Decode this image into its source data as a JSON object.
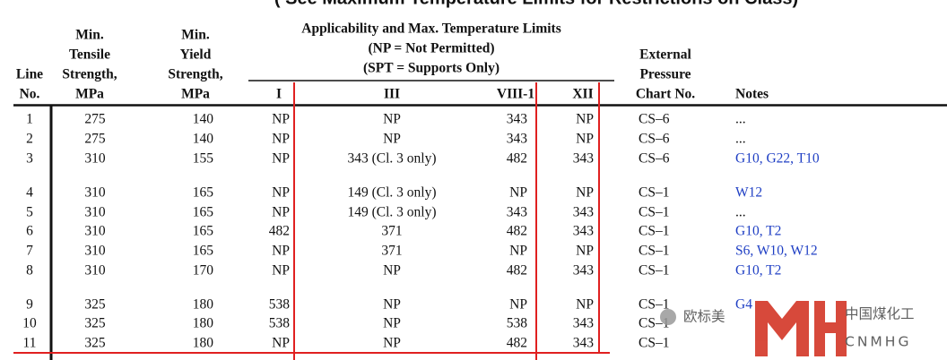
{
  "title": "( See Maximum Temperature Limits for Restrictions on Class)",
  "header": {
    "line": [
      "Line",
      "No."
    ],
    "tensile": [
      "Min.",
      "Tensile",
      "Strength,",
      "MPa"
    ],
    "yield": [
      "Min.",
      "Yield",
      "Strength,",
      "MPa"
    ],
    "applicability": [
      "Applicability and Max. Temperature Limits",
      "(NP = Not Permitted)",
      "(SPT = Supports Only)"
    ],
    "sub": [
      "I",
      "III",
      "VIII-1",
      "XII"
    ],
    "chart": [
      "External",
      "Pressure",
      "Chart No."
    ],
    "notes": "Notes"
  },
  "rows": [
    {
      "line": "1",
      "tensile": "275",
      "yield": "140",
      "I": "NP",
      "III": "NP",
      "VIII": "343",
      "XII": "NP",
      "chart": "CS–6",
      "notes": "..."
    },
    {
      "line": "2",
      "tensile": "275",
      "yield": "140",
      "I": "NP",
      "III": "NP",
      "VIII": "343",
      "XII": "NP",
      "chart": "CS–6",
      "notes": "..."
    },
    {
      "line": "3",
      "tensile": "310",
      "yield": "155",
      "I": "NP",
      "III": "343 (Cl. 3 only)",
      "VIII": "482",
      "XII": "343",
      "chart": "CS–6",
      "notes": "G10,  G22,  T10"
    },
    {
      "line": "4",
      "tensile": "310",
      "yield": "165",
      "I": "NP",
      "III": "149 (Cl. 3 only)",
      "VIII": "NP",
      "XII": "NP",
      "chart": "CS–1",
      "notes": "W12"
    },
    {
      "line": "5",
      "tensile": "310",
      "yield": "165",
      "I": "NP",
      "III": "149 (Cl. 3 only)",
      "VIII": "343",
      "XII": "343",
      "chart": "CS–1",
      "notes": "..."
    },
    {
      "line": "6",
      "tensile": "310",
      "yield": "165",
      "I": "482",
      "III": "371",
      "VIII": "482",
      "XII": "343",
      "chart": "CS–1",
      "notes": "G10,  T2"
    },
    {
      "line": "7",
      "tensile": "310",
      "yield": "165",
      "I": "NP",
      "III": "371",
      "VIII": "NP",
      "XII": "NP",
      "chart": "CS–1",
      "notes": "S6,  W10,  W12"
    },
    {
      "line": "8",
      "tensile": "310",
      "yield": "170",
      "I": "NP",
      "III": "NP",
      "VIII": "482",
      "XII": "343",
      "chart": "CS–1",
      "notes": "G10,  T2"
    },
    {
      "line": "9",
      "tensile": "325",
      "yield": "180",
      "I": "538",
      "III": "NP",
      "VIII": "NP",
      "XII": "NP",
      "chart": "CS–1",
      "notes": "G4"
    },
    {
      "line": "10",
      "tensile": "325",
      "yield": "180",
      "I": "538",
      "III": "NP",
      "VIII": "538",
      "XII": "343",
      "chart": "CS–1"
    },
    {
      "line": "11",
      "tensile": "325",
      "yield": "180",
      "I": "NP",
      "III": "NP",
      "VIII": "482",
      "XII": "343",
      "chart": "CS–1"
    }
  ],
  "watermark": {
    "account": "欧标美",
    "brand_cn": "中国煤化工",
    "brand_en": "CNMHG"
  }
}
